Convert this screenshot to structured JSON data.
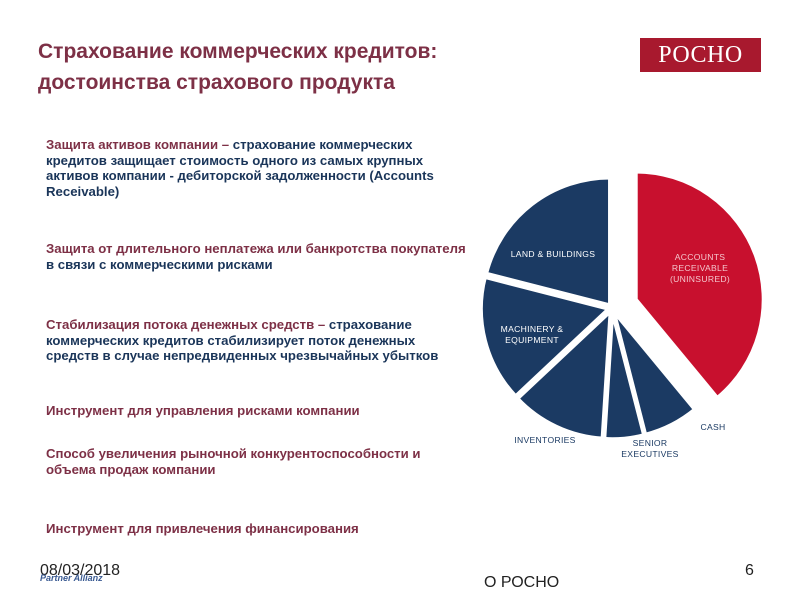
{
  "title": {
    "line1": "Страхование коммерческих кредитов:",
    "line2": "достоинства страхового продукта"
  },
  "logo": {
    "text": "РОСНО"
  },
  "bullets": [
    {
      "lead": "Защита активов компании – ",
      "rest": " страхование коммерческих кредитов защищает стоимость одного из самых крупных активов компании - дебиторской задолженности (Accounts Receivable)"
    },
    {
      "lead": "Защита от длительного неплатежа или банкротства покупателя ",
      "rest": "в связи с коммерческими рисками"
    },
    {
      "lead": "Стабилизация потока денежных средств – ",
      "rest": "страхование коммерческих кредитов стабилизирует поток денежных средств в случае непредвиденных чрезвычайных убытков"
    },
    {
      "lead": "Инструмент для управления рисками компании",
      "rest": ""
    },
    {
      "lead": "Способ увеличения рыночной конкурентоспособности и объема продаж компании",
      "rest": ""
    },
    {
      "lead": "Инструмент для привлечения финансирования",
      "rest": ""
    }
  ],
  "chart_data": {
    "type": "pie",
    "title": "",
    "slices": [
      {
        "label": [
          "ACCOUNTS",
          "RECEIVABLE",
          "(UNINSURED)"
        ],
        "value": 39,
        "color": "#c8102e",
        "exploded": true
      },
      {
        "label": [
          "CASH"
        ],
        "value": 7,
        "color": "#1b3a63",
        "exploded": false
      },
      {
        "label": [
          "SENIOR",
          "EXECUTIVES"
        ],
        "value": 5,
        "color": "#1b3a63",
        "exploded": false
      },
      {
        "label": [
          "INVENTORIES"
        ],
        "value": 12,
        "color": "#1b3a63",
        "exploded": false
      },
      {
        "label": [
          "MACHINERY &",
          "EQUIPMENT"
        ],
        "value": 16,
        "color": "#1b3a63",
        "exploded": false
      },
      {
        "label": [
          "LAND & BUILDINGS"
        ],
        "value": 21,
        "color": "#1b3a63",
        "exploded": false
      }
    ]
  },
  "footer": {
    "date": "08/03/2018",
    "brand": "Partner Allianz",
    "center": "О РОСНО",
    "page": "6"
  }
}
